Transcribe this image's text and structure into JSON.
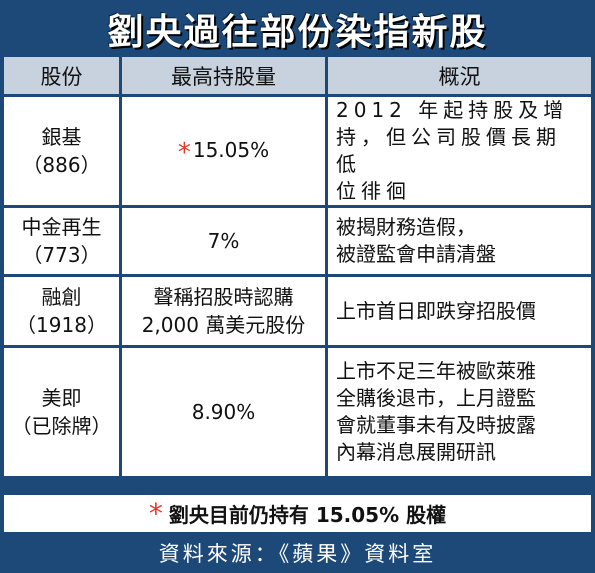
{
  "title": "劉央過往部份染指新股",
  "columns": [
    "股份",
    "最高持股量",
    "概況"
  ],
  "rows": [
    {
      "stock_name": "銀基",
      "stock_code": "（886）",
      "holding_marker": "*",
      "holding": "15.05%",
      "summary_lines": [
        "2012 年起持股及增",
        "持，但公司股價長期低",
        "位徘徊"
      ]
    },
    {
      "stock_name": "中金再生",
      "stock_code": "（773）",
      "holding_marker": "",
      "holding": "7%",
      "summary_lines": [
        "被揭財務造假，",
        "被證監會申請清盤"
      ]
    },
    {
      "stock_name": "融創",
      "stock_code": "（1918）",
      "holding_marker": "",
      "holding_lines": [
        "聲稱招股時認購",
        "2,000 萬美元股份"
      ],
      "summary_lines": [
        "上市首日即跌穿招股價"
      ]
    },
    {
      "stock_name": "美即",
      "stock_code": "（已除牌）",
      "holding_marker": "",
      "holding": "8.90%",
      "summary_lines": [
        "上市不足三年被歐萊雅",
        "全購後退市，上月證監",
        "會就董事未有及時披露",
        "內幕消息展開研訊"
      ]
    }
  ],
  "footnote": {
    "marker": "*",
    "text": "劉央目前仍持有 15.05% 股權"
  },
  "source": "資料來源：《蘋果》資料室",
  "colors": {
    "frame": "#1d4978",
    "header_bg": "#c8d2de",
    "marker": "#e23a2a"
  }
}
